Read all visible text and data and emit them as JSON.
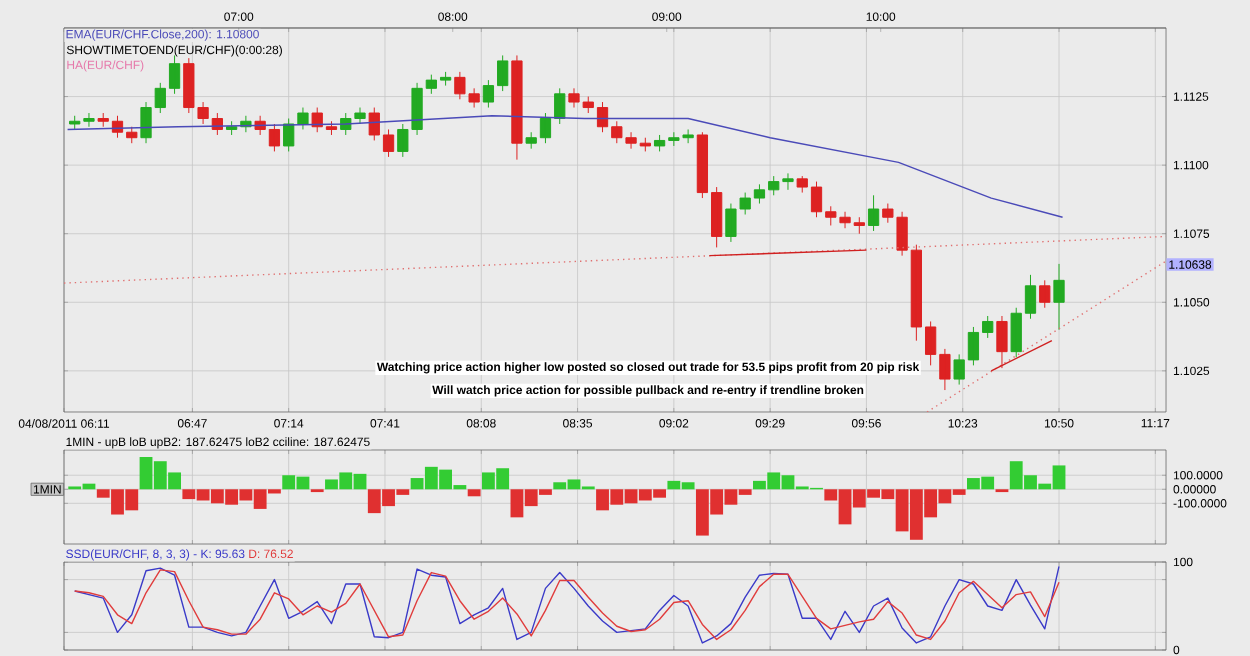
{
  "chart_data": [
    {
      "type": "candlestick",
      "x": [
        "2011-08-04T06:14",
        "2011-08-04T06:18",
        "2011-08-04T06:22",
        "2011-08-04T06:26",
        "2011-08-04T06:30",
        "2011-08-04T06:34",
        "2011-08-04T06:38",
        "2011-08-04T06:42",
        "2011-08-04T06:46",
        "2011-08-04T06:50",
        "2011-08-04T06:54",
        "2011-08-04T06:58",
        "2011-08-04T07:02",
        "2011-08-04T07:06",
        "2011-08-04T07:10",
        "2011-08-04T07:14",
        "2011-08-04T07:18",
        "2011-08-04T07:22",
        "2011-08-04T07:26",
        "2011-08-04T07:30",
        "2011-08-04T07:34",
        "2011-08-04T07:38",
        "2011-08-04T07:42",
        "2011-08-04T07:46",
        "2011-08-04T07:50",
        "2011-08-04T07:54",
        "2011-08-04T07:58",
        "2011-08-04T08:02",
        "2011-08-04T08:06",
        "2011-08-04T08:10",
        "2011-08-04T08:14",
        "2011-08-04T08:18",
        "2011-08-04T08:22",
        "2011-08-04T08:26",
        "2011-08-04T08:30",
        "2011-08-04T08:34",
        "2011-08-04T08:38",
        "2011-08-04T08:42",
        "2011-08-04T08:46",
        "2011-08-04T08:50",
        "2011-08-04T08:54",
        "2011-08-04T08:58",
        "2011-08-04T09:02",
        "2011-08-04T09:06",
        "2011-08-04T09:10",
        "2011-08-04T09:14",
        "2011-08-04T09:18",
        "2011-08-04T09:22",
        "2011-08-04T09:26",
        "2011-08-04T09:30",
        "2011-08-04T09:34",
        "2011-08-04T09:38",
        "2011-08-04T09:42",
        "2011-08-04T09:46",
        "2011-08-04T09:50",
        "2011-08-04T09:54",
        "2011-08-04T09:58",
        "2011-08-04T10:02",
        "2011-08-04T10:06",
        "2011-08-04T10:10",
        "2011-08-04T10:14",
        "2011-08-04T10:18",
        "2011-08-04T10:22",
        "2011-08-04T10:26",
        "2011-08-04T10:30",
        "2011-08-04T10:34",
        "2011-08-04T10:38",
        "2011-08-04T10:42",
        "2011-08-04T10:46",
        "2011-08-04T10:50"
      ],
      "ohlc": [
        [
          1.1115,
          1.1118,
          1.1113,
          1.1116
        ],
        [
          1.1116,
          1.1119,
          1.1114,
          1.1117
        ],
        [
          1.1117,
          1.1119,
          1.1114,
          1.1116
        ],
        [
          1.1116,
          1.1118,
          1.111,
          1.1112
        ],
        [
          1.1112,
          1.1114,
          1.1108,
          1.111
        ],
        [
          1.111,
          1.1123,
          1.1108,
          1.1121
        ],
        [
          1.1121,
          1.113,
          1.1119,
          1.1128
        ],
        [
          1.1128,
          1.114,
          1.1126,
          1.1137
        ],
        [
          1.1137,
          1.1139,
          1.1119,
          1.1121
        ],
        [
          1.1121,
          1.1123,
          1.1115,
          1.1117
        ],
        [
          1.1117,
          1.1119,
          1.1111,
          1.1113
        ],
        [
          1.1113,
          1.1116,
          1.1111,
          1.1114
        ],
        [
          1.1114,
          1.1118,
          1.1112,
          1.1116
        ],
        [
          1.1116,
          1.1118,
          1.1111,
          1.1113
        ],
        [
          1.1113,
          1.1115,
          1.1105,
          1.1107
        ],
        [
          1.1107,
          1.1117,
          1.1105,
          1.1115
        ],
        [
          1.1115,
          1.1121,
          1.1113,
          1.1119
        ],
        [
          1.1119,
          1.1121,
          1.1112,
          1.1114
        ],
        [
          1.1114,
          1.1116,
          1.1111,
          1.1113
        ],
        [
          1.1113,
          1.1119,
          1.1111,
          1.1117
        ],
        [
          1.1117,
          1.1121,
          1.1115,
          1.1119
        ],
        [
          1.1119,
          1.1121,
          1.1109,
          1.1111
        ],
        [
          1.1111,
          1.1113,
          1.1103,
          1.1105
        ],
        [
          1.1105,
          1.1115,
          1.1103,
          1.1113
        ],
        [
          1.1113,
          1.113,
          1.1111,
          1.1128
        ],
        [
          1.1128,
          1.1133,
          1.1126,
          1.1131
        ],
        [
          1.1131,
          1.1134,
          1.1129,
          1.1132
        ],
        [
          1.1132,
          1.1134,
          1.1124,
          1.1126
        ],
        [
          1.1126,
          1.1128,
          1.1121,
          1.1123
        ],
        [
          1.1123,
          1.1131,
          1.1121,
          1.1129
        ],
        [
          1.1129,
          1.114,
          1.1127,
          1.1138
        ],
        [
          1.1138,
          1.114,
          1.1102,
          1.1108
        ],
        [
          1.1108,
          1.1112,
          1.1106,
          1.111
        ],
        [
          1.111,
          1.1119,
          1.1108,
          1.1117
        ],
        [
          1.1117,
          1.1128,
          1.1115,
          1.1126
        ],
        [
          1.1126,
          1.1128,
          1.1121,
          1.1123
        ],
        [
          1.1123,
          1.1125,
          1.1119,
          1.1121
        ],
        [
          1.1121,
          1.1123,
          1.1112,
          1.1114
        ],
        [
          1.1114,
          1.1116,
          1.1108,
          1.111
        ],
        [
          1.111,
          1.1112,
          1.1106,
          1.1108
        ],
        [
          1.1108,
          1.111,
          1.1105,
          1.1107
        ],
        [
          1.1107,
          1.1111,
          1.1105,
          1.1109
        ],
        [
          1.1109,
          1.1112,
          1.1107,
          1.111
        ],
        [
          1.111,
          1.1113,
          1.1108,
          1.1111
        ],
        [
          1.1111,
          1.1112,
          1.1088,
          1.109
        ],
        [
          1.109,
          1.1092,
          1.107,
          1.1074
        ],
        [
          1.1074,
          1.1086,
          1.1072,
          1.1084
        ],
        [
          1.1084,
          1.109,
          1.1082,
          1.1088
        ],
        [
          1.1088,
          1.1093,
          1.1086,
          1.1091
        ],
        [
          1.1091,
          1.1096,
          1.1089,
          1.1094
        ],
        [
          1.1094,
          1.1097,
          1.1091,
          1.1095
        ],
        [
          1.1095,
          1.1096,
          1.109,
          1.1092
        ],
        [
          1.1092,
          1.1094,
          1.1081,
          1.1083
        ],
        [
          1.1083,
          1.1085,
          1.1078,
          1.1081
        ],
        [
          1.1081,
          1.1083,
          1.1077,
          1.1079
        ],
        [
          1.1079,
          1.1081,
          1.1075,
          1.1078
        ],
        [
          1.1078,
          1.1089,
          1.1076,
          1.1084
        ],
        [
          1.1084,
          1.1086,
          1.1079,
          1.1081
        ],
        [
          1.1081,
          1.1083,
          1.1067,
          1.1069
        ],
        [
          1.1069,
          1.1071,
          1.1036,
          1.1041
        ],
        [
          1.1041,
          1.1043,
          1.1027,
          1.1031
        ],
        [
          1.1031,
          1.1033,
          1.1018,
          1.1022
        ],
        [
          1.1022,
          1.1031,
          1.102,
          1.1029
        ],
        [
          1.1029,
          1.1041,
          1.1027,
          1.1039
        ],
        [
          1.1039,
          1.1045,
          1.1037,
          1.1043
        ],
        [
          1.1043,
          1.1045,
          1.1026,
          1.1032
        ],
        [
          1.1032,
          1.1048,
          1.103,
          1.1046
        ],
        [
          1.1046,
          1.106,
          1.1044,
          1.1056
        ],
        [
          1.1056,
          1.1058,
          1.1048,
          1.105
        ],
        [
          1.105,
          1.1064,
          1.104,
          1.1058
        ]
      ],
      "colors": [
        "#22aa22",
        "#22aa22",
        "#dd2222",
        "#dd2222",
        "#dd2222",
        "#22aa22",
        "#22aa22",
        "#22aa22",
        "#dd2222",
        "#dd2222",
        "#dd2222",
        "#22aa22",
        "#22aa22",
        "#dd2222",
        "#dd2222",
        "#22aa22",
        "#22aa22",
        "#dd2222",
        "#dd2222",
        "#22aa22",
        "#22aa22",
        "#dd2222",
        "#dd2222",
        "#22aa22",
        "#22aa22",
        "#22aa22",
        "#22aa22",
        "#dd2222",
        "#dd2222",
        "#22aa22",
        "#22aa22",
        "#dd2222",
        "#22aa22",
        "#22aa22",
        "#22aa22",
        "#dd2222",
        "#dd2222",
        "#dd2222",
        "#dd2222",
        "#dd2222",
        "#dd2222",
        "#22aa22",
        "#22aa22",
        "#22aa22",
        "#dd2222",
        "#dd2222",
        "#22aa22",
        "#22aa22",
        "#22aa22",
        "#22aa22",
        "#22aa22",
        "#dd2222",
        "#dd2222",
        "#dd2222",
        "#dd2222",
        "#dd2222",
        "#22aa22",
        "#dd2222",
        "#dd2222",
        "#dd2222",
        "#dd2222",
        "#dd2222",
        "#22aa22",
        "#22aa22",
        "#22aa22",
        "#dd2222",
        "#22aa22",
        "#22aa22",
        "#dd2222",
        "#22aa22"
      ],
      "series": [
        {
          "type": "line",
          "name": "EMA(EUR/CHF.Close,200): 1.10800",
          "color": "#4a4ab8",
          "x": [
            "2011-08-04T06:12",
            "2011-08-04T06:43",
            "2011-08-04T07:30",
            "2011-08-04T08:11",
            "2011-08-04T08:37",
            "2011-08-04T09:06",
            "2011-08-04T09:29",
            "2011-08-04T10:05",
            "2011-08-04T10:21",
            "2011-08-04T10:31",
            "2011-08-04T10:51"
          ],
          "values": [
            1.1113,
            1.1114,
            1.1115,
            1.1118,
            1.1117,
            1.1117,
            1.111,
            1.1101,
            1.1093,
            1.1088,
            1.1081
          ]
        },
        {
          "type": "line",
          "color": "#e07070",
          "line_style": "dotted",
          "x": [
            "2011-08-04T06:11",
            "2011-08-04T11:20"
          ],
          "values": [
            1.1057,
            1.1074
          ]
        },
        {
          "type": "line",
          "color": "#e07070",
          "line_style": "dotted",
          "x": [
            "2011-08-04T10:13",
            "2011-08-04T11:20"
          ],
          "values": [
            1.101,
            1.1065
          ]
        },
        {
          "type": "line",
          "color": "#d02020",
          "line_style": "solid",
          "x": [
            "2011-08-04T09:12",
            "2011-08-04T09:56"
          ],
          "values": [
            1.1067,
            1.1069
          ]
        },
        {
          "type": "line",
          "color": "#d02020",
          "line_style": "solid",
          "x": [
            "2011-08-04T10:31",
            "2011-08-04T10:48"
          ],
          "values": [
            1.1025,
            1.1036
          ]
        }
      ],
      "annotations": [
        "SHOWTIMETOEND(EUR/CHF)(0:00:28)",
        "HA(EUR/CHF)",
        "Watching price action higher low posted so closed out trade for 53.5 pips profit from 20 pip risk",
        "Will watch price action for possible pullback and re-entry if trendline broken",
        "1.10638"
      ],
      "xlim": [
        "2011-08-04T06:11",
        "2011-08-04T11:20"
      ],
      "xticks": [
        {
          "value": "2011-08-04T06:11",
          "label": "04/08/2011 06:11"
        },
        {
          "value": "2011-08-04T06:47",
          "label": "06:47"
        },
        {
          "value": "2011-08-04T07:14",
          "label": "07:14"
        },
        {
          "value": "2011-08-04T07:41",
          "label": "07:41"
        },
        {
          "value": "2011-08-04T08:08",
          "label": "08:08"
        },
        {
          "value": "2011-08-04T08:35",
          "label": "08:35"
        },
        {
          "value": "2011-08-04T09:02",
          "label": "09:02"
        },
        {
          "value": "2011-08-04T09:29",
          "label": "09:29"
        },
        {
          "value": "2011-08-04T09:56",
          "label": "09:56"
        },
        {
          "value": "2011-08-04T10:23",
          "label": "10:23"
        },
        {
          "value": "2011-08-04T10:50",
          "label": "10:50"
        },
        {
          "value": "2011-08-04T11:17",
          "label": "11:17"
        }
      ],
      "x2lim": [
        "2011-08-04T06:11",
        "2011-08-04T11:20"
      ],
      "x2ticks": [
        {
          "value": "2011-08-04T07:00",
          "label": "07:00"
        },
        {
          "value": "2011-08-04T08:00",
          "label": "08:00"
        },
        {
          "value": "2011-08-04T09:00",
          "label": "09:00"
        },
        {
          "value": "2011-08-04T10:00",
          "label": "10:00"
        }
      ],
      "ylim": [
        1.101,
        1.115
      ],
      "yticks": [
        {
          "value": 1.1025,
          "label": "1.1025"
        },
        {
          "value": 1.105,
          "label": "1.1050"
        },
        {
          "value": 1.1075,
          "label": "1.1075"
        },
        {
          "value": 1.11,
          "label": "1.1100"
        },
        {
          "value": 1.1125,
          "label": "1.1125"
        }
      ],
      "grid": true
    },
    {
      "type": "bar",
      "subtitle": "1MIN - upB loB upB2: 187.62475 loB2 cciline: 187.62475",
      "x": [
        "2011-08-04T06:14",
        "2011-08-04T06:18",
        "2011-08-04T06:22",
        "2011-08-04T06:26",
        "2011-08-04T06:30",
        "2011-08-04T06:34",
        "2011-08-04T06:38",
        "2011-08-04T06:42",
        "2011-08-04T06:46",
        "2011-08-04T06:50",
        "2011-08-04T06:54",
        "2011-08-04T06:58",
        "2011-08-04T07:02",
        "2011-08-04T07:06",
        "2011-08-04T07:10",
        "2011-08-04T07:14",
        "2011-08-04T07:18",
        "2011-08-04T07:22",
        "2011-08-04T07:26",
        "2011-08-04T07:30",
        "2011-08-04T07:34",
        "2011-08-04T07:38",
        "2011-08-04T07:42",
        "2011-08-04T07:46",
        "2011-08-04T07:50",
        "2011-08-04T07:54",
        "2011-08-04T07:58",
        "2011-08-04T08:02",
        "2011-08-04T08:06",
        "2011-08-04T08:10",
        "2011-08-04T08:14",
        "2011-08-04T08:18",
        "2011-08-04T08:22",
        "2011-08-04T08:26",
        "2011-08-04T08:30",
        "2011-08-04T08:34",
        "2011-08-04T08:38",
        "2011-08-04T08:42",
        "2011-08-04T08:46",
        "2011-08-04T08:50",
        "2011-08-04T08:54",
        "2011-08-04T08:58",
        "2011-08-04T09:02",
        "2011-08-04T09:06",
        "2011-08-04T09:10",
        "2011-08-04T09:14",
        "2011-08-04T09:18",
        "2011-08-04T09:22",
        "2011-08-04T09:26",
        "2011-08-04T09:30",
        "2011-08-04T09:34",
        "2011-08-04T09:38",
        "2011-08-04T09:42",
        "2011-08-04T09:46",
        "2011-08-04T09:50",
        "2011-08-04T09:54",
        "2011-08-04T09:58",
        "2011-08-04T10:02",
        "2011-08-04T10:06",
        "2011-08-04T10:10",
        "2011-08-04T10:14",
        "2011-08-04T10:18",
        "2011-08-04T10:22",
        "2011-08-04T10:26",
        "2011-08-04T10:30",
        "2011-08-04T10:34",
        "2011-08-04T10:38",
        "2011-08-04T10:42",
        "2011-08-04T10:46",
        "2011-08-04T10:50"
      ],
      "values": [
        20,
        40,
        -60,
        -180,
        -150,
        230,
        200,
        120,
        -70,
        -80,
        -100,
        -110,
        -80,
        -140,
        -30,
        100,
        90,
        -20,
        70,
        120,
        110,
        -170,
        -120,
        -40,
        80,
        160,
        140,
        30,
        -50,
        120,
        150,
        -200,
        -120,
        -40,
        50,
        70,
        20,
        -150,
        -110,
        -100,
        -80,
        -60,
        60,
        50,
        -330,
        -180,
        -110,
        -40,
        60,
        120,
        100,
        20,
        10,
        -80,
        -250,
        -130,
        -60,
        -70,
        -300,
        -360,
        -200,
        -100,
        -40,
        80,
        90,
        -20,
        200,
        100,
        40,
        170
      ],
      "colors": [
        "#33cc33",
        "#33cc33",
        "#e03030",
        "#e03030",
        "#e03030",
        "#33cc33",
        "#33cc33",
        "#33cc33",
        "#e03030",
        "#e03030",
        "#e03030",
        "#e03030",
        "#e03030",
        "#e03030",
        "#e03030",
        "#33cc33",
        "#33cc33",
        "#e03030",
        "#33cc33",
        "#33cc33",
        "#33cc33",
        "#e03030",
        "#e03030",
        "#e03030",
        "#33cc33",
        "#33cc33",
        "#33cc33",
        "#33cc33",
        "#e03030",
        "#33cc33",
        "#33cc33",
        "#e03030",
        "#e03030",
        "#e03030",
        "#33cc33",
        "#33cc33",
        "#33cc33",
        "#e03030",
        "#e03030",
        "#e03030",
        "#e03030",
        "#e03030",
        "#33cc33",
        "#33cc33",
        "#e03030",
        "#e03030",
        "#e03030",
        "#e03030",
        "#33cc33",
        "#33cc33",
        "#33cc33",
        "#33cc33",
        "#33cc33",
        "#e03030",
        "#e03030",
        "#e03030",
        "#e03030",
        "#e03030",
        "#e03030",
        "#e03030",
        "#e03030",
        "#e03030",
        "#e03030",
        "#33cc33",
        "#33cc33",
        "#e03030",
        "#33cc33",
        "#33cc33",
        "#33cc33",
        "#33cc33"
      ],
      "annotations": [
        "1MIN"
      ],
      "xlim": [
        "2011-08-04T06:11",
        "2011-08-04T11:20"
      ],
      "xticks": [
        {
          "value": "2011-08-04T06:11",
          "label": null
        },
        {
          "value": "2011-08-04T06:47",
          "label": null
        },
        {
          "value": "2011-08-04T07:14",
          "label": null
        },
        {
          "value": "2011-08-04T07:41",
          "label": null
        },
        {
          "value": "2011-08-04T08:08",
          "label": null
        },
        {
          "value": "2011-08-04T08:35",
          "label": null
        },
        {
          "value": "2011-08-04T09:02",
          "label": null
        },
        {
          "value": "2011-08-04T09:29",
          "label": null
        },
        {
          "value": "2011-08-04T09:56",
          "label": null
        },
        {
          "value": "2011-08-04T10:23",
          "label": null
        },
        {
          "value": "2011-08-04T10:50",
          "label": null
        },
        {
          "value": "2011-08-04T11:17",
          "label": null
        }
      ],
      "ylim": [
        -390,
        280
      ],
      "yticks": [
        {
          "value": -100,
          "label": "-100.0000"
        },
        {
          "value": 0,
          "label": "0.00000"
        },
        {
          "value": 100,
          "label": "100.0000"
        }
      ],
      "grid": true,
      "tick_labels": "y"
    },
    {
      "type": "line",
      "subtitle": "SSD(EUR/CHF, 8, 3, 3) -",
      "x": [
        "2011-08-04T06:14",
        "2011-08-04T06:18",
        "2011-08-04T06:22",
        "2011-08-04T06:26",
        "2011-08-04T06:30",
        "2011-08-04T06:34",
        "2011-08-04T06:38",
        "2011-08-04T06:42",
        "2011-08-04T06:46",
        "2011-08-04T06:50",
        "2011-08-04T06:54",
        "2011-08-04T06:58",
        "2011-08-04T07:02",
        "2011-08-04T07:06",
        "2011-08-04T07:10",
        "2011-08-04T07:14",
        "2011-08-04T07:18",
        "2011-08-04T07:22",
        "2011-08-04T07:26",
        "2011-08-04T07:30",
        "2011-08-04T07:34",
        "2011-08-04T07:38",
        "2011-08-04T07:42",
        "2011-08-04T07:46",
        "2011-08-04T07:50",
        "2011-08-04T07:54",
        "2011-08-04T07:58",
        "2011-08-04T08:02",
        "2011-08-04T08:06",
        "2011-08-04T08:10",
        "2011-08-04T08:14",
        "2011-08-04T08:18",
        "2011-08-04T08:22",
        "2011-08-04T08:26",
        "2011-08-04T08:30",
        "2011-08-04T08:34",
        "2011-08-04T08:38",
        "2011-08-04T08:42",
        "2011-08-04T08:46",
        "2011-08-04T08:50",
        "2011-08-04T08:54",
        "2011-08-04T08:58",
        "2011-08-04T09:02",
        "2011-08-04T09:06",
        "2011-08-04T09:10",
        "2011-08-04T09:14",
        "2011-08-04T09:18",
        "2011-08-04T09:22",
        "2011-08-04T09:26",
        "2011-08-04T09:30",
        "2011-08-04T09:34",
        "2011-08-04T09:38",
        "2011-08-04T09:42",
        "2011-08-04T09:46",
        "2011-08-04T09:50",
        "2011-08-04T09:54",
        "2011-08-04T09:58",
        "2011-08-04T10:02",
        "2011-08-04T10:06",
        "2011-08-04T10:10",
        "2011-08-04T10:14",
        "2011-08-04T10:18",
        "2011-08-04T10:22",
        "2011-08-04T10:26",
        "2011-08-04T10:30",
        "2011-08-04T10:34",
        "2011-08-04T10:38",
        "2011-08-04T10:42",
        "2011-08-04T10:46",
        "2011-08-04T10:50"
      ],
      "series": [
        {
          "name": "K: 95.63",
          "color": "#3a3ac8",
          "values": [
            67,
            63,
            59,
            20,
            40,
            90,
            93,
            85,
            26,
            26,
            20,
            16,
            20,
            50,
            80,
            36,
            44,
            55,
            30,
            75,
            75,
            15,
            14,
            20,
            92,
            85,
            83,
            30,
            40,
            48,
            70,
            12,
            20,
            70,
            88,
            70,
            50,
            33,
            20,
            22,
            24,
            45,
            62,
            50,
            8,
            16,
            30,
            60,
            85,
            87,
            86,
            36,
            36,
            12,
            44,
            20,
            50,
            59,
            25,
            8,
            15,
            50,
            80,
            75,
            50,
            45,
            80,
            51,
            24,
            95
          ]
        },
        {
          "name": "D: 76.52",
          "color": "#e03c3c",
          "values": [
            67,
            65,
            61,
            40,
            30,
            65,
            91,
            89,
            56,
            26,
            23,
            18,
            18,
            35,
            65,
            58,
            40,
            50,
            43,
            53,
            75,
            45,
            15,
            17,
            56,
            88,
            84,
            56,
            35,
            44,
            59,
            41,
            16,
            45,
            79,
            79,
            60,
            42,
            27,
            21,
            23,
            35,
            54,
            56,
            29,
            12,
            23,
            45,
            72,
            86,
            86,
            61,
            36,
            24,
            28,
            32,
            35,
            55,
            42,
            17,
            12,
            33,
            65,
            78,
            63,
            48,
            63,
            66,
            38,
            77
          ]
        }
      ],
      "xlim": [
        "2011-08-04T06:11",
        "2011-08-04T11:20"
      ],
      "xticks": [
        {
          "value": "2011-08-04T06:11",
          "label": null
        },
        {
          "value": "2011-08-04T06:47",
          "label": null
        },
        {
          "value": "2011-08-04T07:14",
          "label": null
        },
        {
          "value": "2011-08-04T07:41",
          "label": null
        },
        {
          "value": "2011-08-04T08:08",
          "label": null
        },
        {
          "value": "2011-08-04T08:35",
          "label": null
        },
        {
          "value": "2011-08-04T09:02",
          "label": null
        },
        {
          "value": "2011-08-04T09:29",
          "label": null
        },
        {
          "value": "2011-08-04T09:56",
          "label": null
        },
        {
          "value": "2011-08-04T10:23",
          "label": null
        },
        {
          "value": "2011-08-04T10:50",
          "label": null
        },
        {
          "value": "2011-08-04T11:17",
          "label": null
        }
      ],
      "ylim": [
        0,
        100
      ],
      "yticks": [
        0,
        {
          "value": 20,
          "label": null
        },
        {
          "value": 80,
          "label": null
        },
        100
      ],
      "grid": true,
      "tick_labels": "y"
    }
  ]
}
